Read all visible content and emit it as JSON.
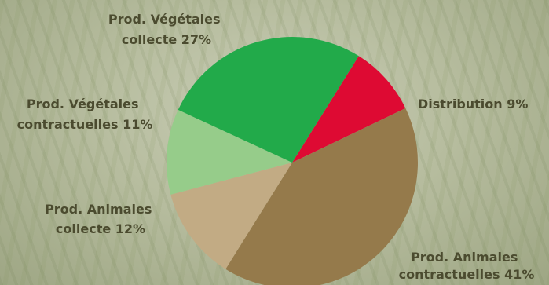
{
  "chart_data": {
    "type": "pie",
    "slices": [
      {
        "line1": "Distribution",
        "line2": "",
        "value": 9,
        "pct_text": "9%",
        "color": "#de0a33"
      },
      {
        "line1": "Prod. Animales",
        "line2": "contractuelles",
        "value": 41,
        "pct_text": "41%",
        "color": "#957a4b"
      },
      {
        "line1": "Prod. Animales",
        "line2": "collecte",
        "value": 12,
        "pct_text": "12%",
        "color": "#c2ab84"
      },
      {
        "line1": "Prod. Végétales",
        "line2": "contractuelles",
        "value": 11,
        "pct_text": "11%",
        "color": "#96cc8a"
      },
      {
        "line1": "Prod. Végétales",
        "line2": "collecte",
        "value": 27,
        "pct_text": "27%",
        "color": "#22aa4a"
      }
    ],
    "start_angle_deg": 58,
    "direction": "clockwise",
    "legend": "none"
  }
}
